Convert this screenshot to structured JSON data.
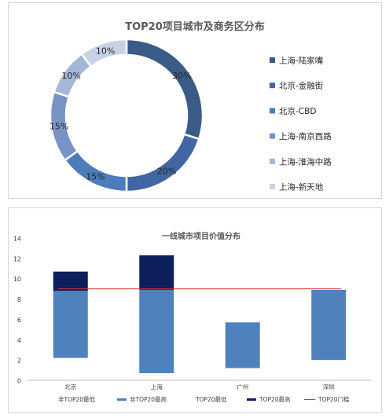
{
  "chart_data": [
    {
      "type": "pie",
      "variant": "donut",
      "title": "TOP20项目城市及商务区分布",
      "legend_position": "right",
      "slices": [
        {
          "label": "上海-陆家嘴",
          "value": 30,
          "value_label": "30%",
          "color": "#3b5b87"
        },
        {
          "label": "北京-金融街",
          "value": 20,
          "value_label": "20%",
          "color": "#4266a3"
        },
        {
          "label": "北京-CBD",
          "value": 15,
          "value_label": "15%",
          "color": "#4d7cba"
        },
        {
          "label": "上海-南京西路",
          "value": 15,
          "value_label": "15%",
          "color": "#7893c6"
        },
        {
          "label": "上海-淮海中路",
          "value": 10,
          "value_label": "10%",
          "color": "#a4b7d9"
        },
        {
          "label": "上海-新天地",
          "value": 10,
          "value_label": "10%",
          "color": "#c8d2e6"
        }
      ]
    },
    {
      "type": "bar",
      "variant": "floating-stacked",
      "title": "一线城市项目价值分布",
      "categories": [
        "北京",
        "上海",
        "广州",
        "深圳"
      ],
      "ylim": [
        0,
        14
      ],
      "yticks": [
        0,
        2,
        4,
        6,
        8,
        10,
        12,
        14
      ],
      "grid": false,
      "legend_position": "bottom",
      "series": [
        {
          "name": "非TOP20最低",
          "values": [
            2.2,
            0.7,
            1.2,
            2.0
          ],
          "color": "none"
        },
        {
          "name": "非TOP20最高",
          "values": [
            8.8,
            8.9,
            5.7,
            8.9
          ],
          "color": "#4f81bd"
        },
        {
          "name": "TOP20最低",
          "values": [
            8.8,
            8.9,
            null,
            null
          ],
          "color": "none"
        },
        {
          "name": "TOP20最高",
          "values": [
            10.7,
            12.3,
            null,
            null
          ],
          "color": "#0d1f5c"
        }
      ],
      "threshold": {
        "name": "TOP20门槛",
        "value": 9.0,
        "color": "#d93030"
      }
    }
  ]
}
